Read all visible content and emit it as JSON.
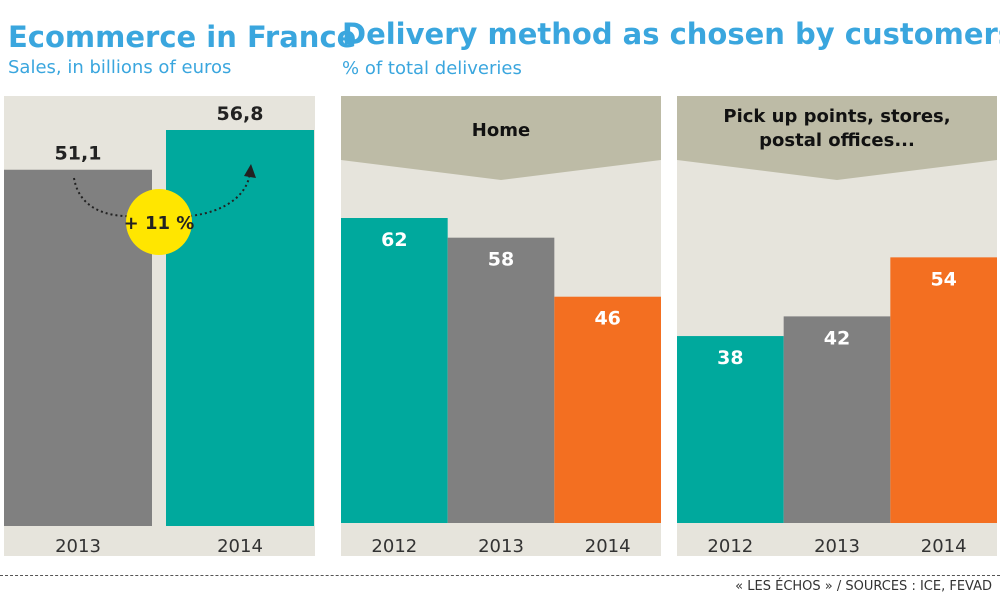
{
  "left_chart": {
    "title": "Ecommerce in France",
    "subtitle": "Sales, in billions of euros",
    "growth_label": "+ 11 %"
  },
  "right_chart": {
    "title": "Delivery method as chosen by customers",
    "subtitle": "% of total deliveries"
  },
  "source": "« LES ÉCHOS » / SOURCES : ICE, FEVAD",
  "colors": {
    "teal": "#00a99d",
    "gray": "#808080",
    "orange": "#f36f21",
    "yellow": "#ffe600",
    "panel_bg": "#e6e4dc",
    "panel_header": "#bdbba6",
    "title_blue": "#3aa6de"
  },
  "chart_data": [
    {
      "type": "bar",
      "title": "Ecommerce in France",
      "subtitle": "Sales, in billions of euros",
      "categories": [
        "2013",
        "2014"
      ],
      "values": [
        51.1,
        56.8
      ],
      "value_labels": [
        "51,1",
        "56,8"
      ],
      "annotation": "+ 11 %"
    },
    {
      "type": "bar",
      "title": "Home",
      "categories": [
        "2012",
        "2013",
        "2014"
      ],
      "values": [
        62,
        58,
        46
      ]
    },
    {
      "type": "bar",
      "title": "Pick up points, stores, postal offices...",
      "title_lines": [
        "Pick up points, stores,",
        "postal offices..."
      ],
      "categories": [
        "2012",
        "2013",
        "2014"
      ],
      "values": [
        38,
        42,
        54
      ]
    }
  ]
}
